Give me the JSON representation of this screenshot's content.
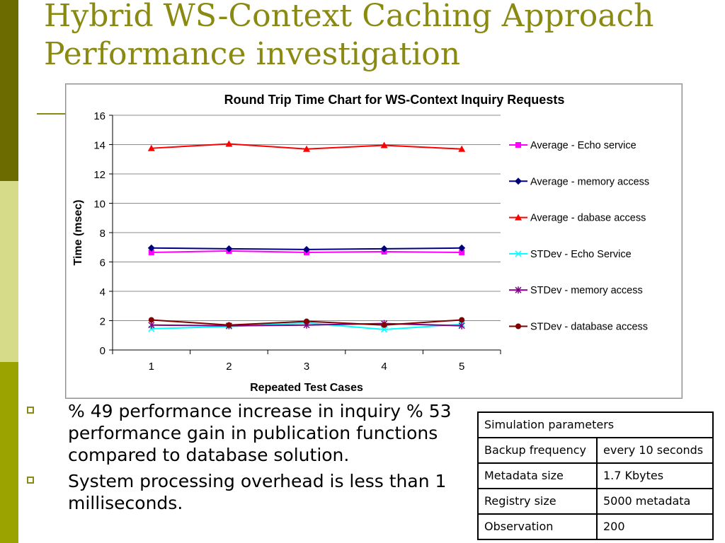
{
  "slide": {
    "title_line1": "Hybrid WS-Context Caching Approach",
    "title_line2": "Performance investigation"
  },
  "colors": {
    "sidebar_dark": "#6b6b00",
    "sidebar_light": "#d6db8a",
    "sidebar_mid": "#9aa300",
    "title": "#8a8a12"
  },
  "chart_data": {
    "type": "line",
    "title": "Round Trip Time Chart for WS-Context Inquiry Requests",
    "xlabel": "Repeated Test Cases",
    "ylabel": "Time (msec)",
    "x": [
      1,
      2,
      3,
      4,
      5
    ],
    "xticks": [
      "1",
      "2",
      "3",
      "4",
      "5"
    ],
    "yticks": [
      "0",
      "2",
      "4",
      "6",
      "8",
      "10",
      "12",
      "14",
      "16"
    ],
    "ylim": [
      0,
      16
    ],
    "grid": "horizontal",
    "legend": "right",
    "series": [
      {
        "name": "Average - Echo service",
        "color": "#ff00ff",
        "marker": "square",
        "values": [
          6.65,
          6.75,
          6.65,
          6.7,
          6.65
        ]
      },
      {
        "name": "Average - memory access",
        "color": "#000080",
        "marker": "diamond",
        "values": [
          6.95,
          6.9,
          6.85,
          6.9,
          6.95
        ]
      },
      {
        "name": "Average - dabase access",
        "color": "#ff0000",
        "marker": "triangle",
        "values": [
          13.75,
          14.05,
          13.7,
          13.95,
          13.7
        ]
      },
      {
        "name": "STDev - Echo Service",
        "color": "#00ffff",
        "marker": "x",
        "values": [
          1.45,
          1.6,
          1.85,
          1.4,
          1.75
        ]
      },
      {
        "name": "STDev - memory access",
        "color": "#800080",
        "marker": "star",
        "values": [
          1.7,
          1.65,
          1.7,
          1.8,
          1.65
        ]
      },
      {
        "name": "STDev - database access",
        "color": "#800000",
        "marker": "circle",
        "values": [
          2.05,
          1.7,
          1.95,
          1.7,
          2.05
        ]
      }
    ]
  },
  "bullets": [
    "% 49 performance increase in inquiry % 53 performance gain in publication functions compared to database solution.",
    "System processing overhead is less than 1 milliseconds."
  ],
  "table": {
    "header": "Simulation parameters",
    "rows": [
      {
        "label": "Backup frequency",
        "value": "every 10 seconds"
      },
      {
        "label": "Metadata size",
        "value": "1.7 Kbytes"
      },
      {
        "label": "Registry size",
        "value": "5000 metadata"
      },
      {
        "label": "Observation",
        "value": "200"
      }
    ]
  }
}
